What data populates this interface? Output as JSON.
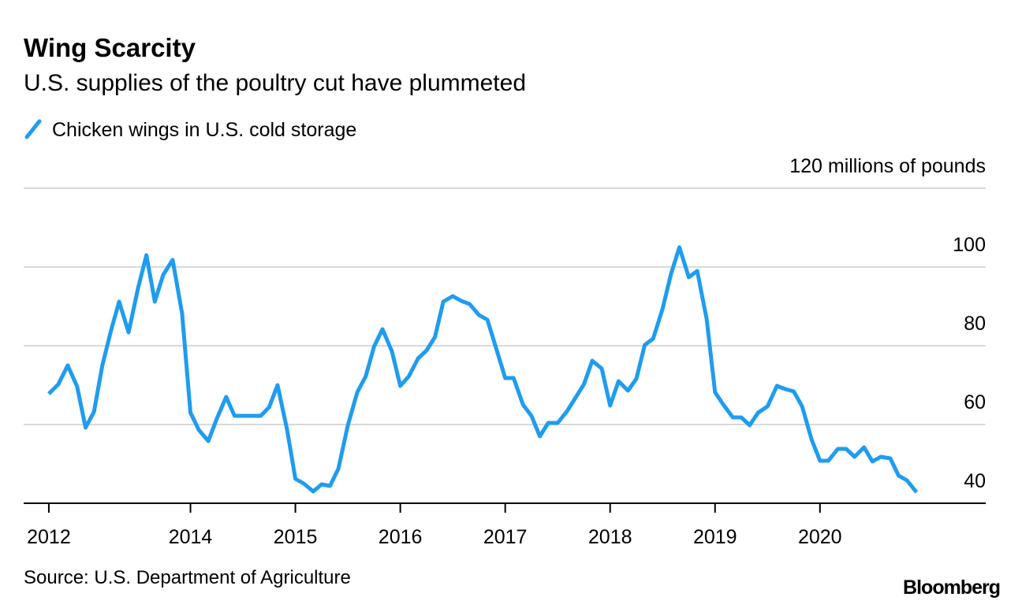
{
  "chart_data": {
    "type": "line",
    "title": "Wing Scarcity",
    "subtitle": "U.S. supplies of the poultry cut have plummeted",
    "source": "Source: U.S. Department of Agriculture",
    "brand": "Bloomberg",
    "x": [
      2012.65,
      2012.74,
      2012.83,
      2012.92,
      2013.0,
      2013.08,
      2013.16,
      2013.24,
      2013.32,
      2013.41,
      2013.5,
      2013.58,
      2013.66,
      2013.74,
      2013.83,
      2013.92,
      2014.0,
      2014.08,
      2014.17,
      2014.25,
      2014.34,
      2014.42,
      2014.67,
      2014.75,
      2014.83,
      2014.92,
      2015.0,
      2015.08,
      2015.17,
      2015.25,
      2015.33,
      2015.41,
      2015.5,
      2015.59,
      2015.67,
      2015.75,
      2015.83,
      2015.92,
      2016.0,
      2016.08,
      2016.17,
      2016.25,
      2016.33,
      2016.41,
      2016.5,
      2016.58,
      2016.66,
      2016.75,
      2016.83,
      2016.92,
      2017.0,
      2017.08,
      2017.17,
      2017.25,
      2017.33,
      2017.41,
      2017.5,
      2017.59,
      2017.67,
      2017.75,
      2017.83,
      2017.92,
      2018.0,
      2018.08,
      2018.17,
      2018.25,
      2018.33,
      2018.41,
      2018.5,
      2018.58,
      2018.66,
      2018.75,
      2018.83,
      2018.92,
      2019.0,
      2019.08,
      2019.17,
      2019.25,
      2019.33,
      2019.41,
      2019.5,
      2019.59,
      2019.67,
      2019.75,
      2019.83,
      2019.92,
      2020.0,
      2020.08,
      2020.17,
      2020.25,
      2020.33,
      2020.42,
      2020.5,
      2020.58,
      2020.67,
      2020.75,
      2020.83,
      2020.92
    ],
    "series": [
      {
        "name": "Chicken wings in U.S. cold storage",
        "color": "#1f9cf0",
        "values": [
          67.8,
          70.2,
          75,
          69.6,
          59.2,
          63.2,
          75,
          83.6,
          91.2,
          83.4,
          94.6,
          103,
          91.2,
          98,
          101.8,
          88.2,
          63,
          58.6,
          55.8,
          61.4,
          67,
          62.2,
          62.2,
          64.4,
          70,
          58.8,
          46.2,
          45,
          43,
          44.8,
          44.4,
          48.8,
          59.8,
          68.2,
          72.2,
          79.8,
          84.2,
          78.6,
          69.8,
          72.2,
          76.8,
          78.8,
          82.2,
          91.2,
          92.6,
          91.4,
          90.6,
          87.8,
          86.6,
          78.8,
          71.8,
          71.8,
          65,
          62.2,
          57,
          60.4,
          60.4,
          63.4,
          66.8,
          70.2,
          76.2,
          74.2,
          64.8,
          71,
          68.6,
          71.6,
          80.2,
          81.8,
          89.4,
          98.2,
          105,
          97.4,
          99,
          86.8,
          68.2,
          65,
          61.8,
          61.8,
          59.8,
          63,
          64.6,
          69.8,
          69,
          68.4,
          64.6,
          56.2,
          50.8,
          50.8,
          53.8,
          53.8,
          51.8,
          54.2,
          50.6,
          51.8,
          51.4,
          47,
          45.8,
          42.8
        ]
      }
    ],
    "xlim": [
      2012.41,
      2021.58
    ],
    "xticks": [
      {
        "value": 2012.65,
        "label": "2012"
      },
      2014,
      2015,
      2016,
      2017,
      2018,
      2019,
      2020
    ],
    "ylim": [
      40,
      120
    ],
    "yticks": [
      40,
      60,
      80,
      100,
      {
        "value": 120,
        "label": "120 millions of pounds"
      }
    ],
    "grid": true
  }
}
